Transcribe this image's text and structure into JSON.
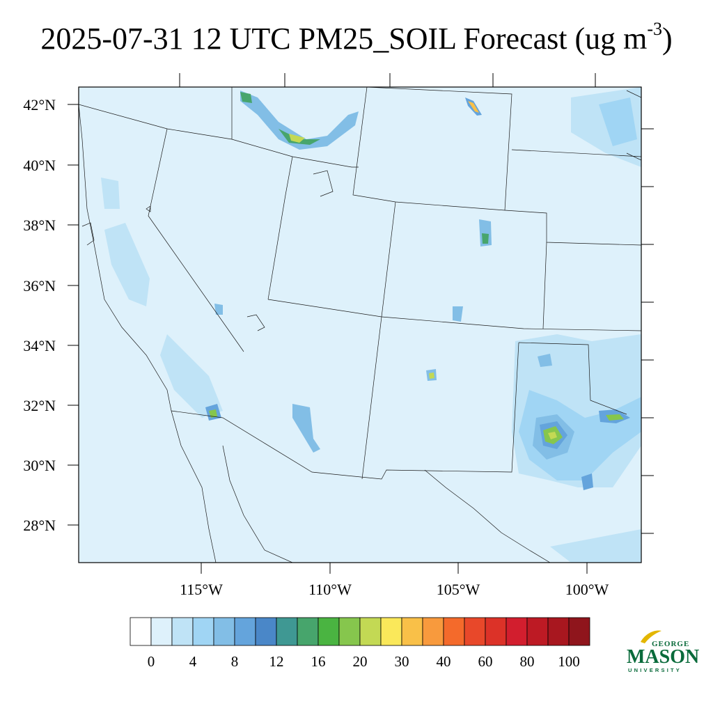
{
  "title": {
    "text": "2025-07-31 12 UTC PM25_SOIL Forecast (ug m",
    "exponent": "-3",
    "close": ")"
  },
  "map": {
    "lat_labels": [
      {
        "value": 42,
        "text": "42°N"
      },
      {
        "value": 40,
        "text": "40°N"
      },
      {
        "value": 38,
        "text": "38°N"
      },
      {
        "value": 36,
        "text": "36°N"
      },
      {
        "value": 34,
        "text": "34°N"
      },
      {
        "value": 32,
        "text": "32°N"
      },
      {
        "value": 30,
        "text": "30°N"
      },
      {
        "value": 28,
        "text": "28°N"
      }
    ],
    "lon_labels": [
      {
        "value": -115,
        "text": "115°W"
      },
      {
        "value": -110,
        "text": "110°W"
      },
      {
        "value": -105,
        "text": "105°W"
      },
      {
        "value": -100,
        "text": "100°W"
      }
    ],
    "ocean_color": "#def1fb",
    "land_color": "#def1fb"
  },
  "colorbar": {
    "colors": [
      "#ffffff",
      "#def1fb",
      "#bfe3f6",
      "#a0d5f4",
      "#82bee6",
      "#64a4dc",
      "#4a87c8",
      "#3f9893",
      "#47a56c",
      "#4ab441",
      "#86c64d",
      "#c3d954",
      "#fae85a",
      "#f9c048",
      "#f89a3d",
      "#f46a2b",
      "#e8482a",
      "#dc3228",
      "#d21e2e",
      "#bd1a24",
      "#a8171f",
      "#8f151c"
    ],
    "labels": [
      "0",
      "4",
      "8",
      "12",
      "16",
      "20",
      "30",
      "40",
      "60",
      "80",
      "100"
    ]
  },
  "logo": {
    "top": "GEORGE",
    "main": "MASON",
    "bottom": "UNIVERSITY",
    "color": "#0a6b3b",
    "accent": "#e3b600"
  }
}
